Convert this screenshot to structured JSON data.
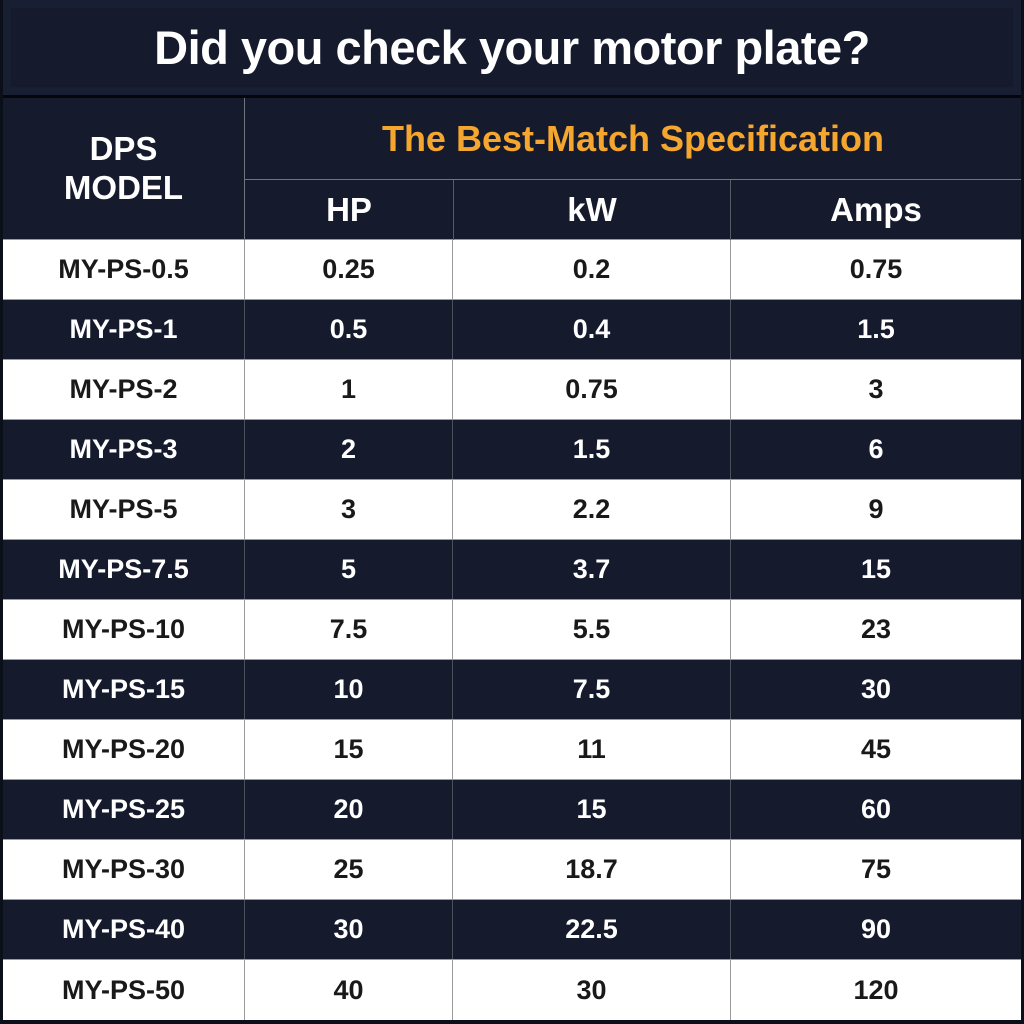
{
  "colors": {
    "navy": "#151B2D",
    "accent_orange": "#F5A62E",
    "grid_line": "#9B9B9B",
    "frame": "#0B0F1A",
    "dark_text": "#191919"
  },
  "title": "Did you check your motor plate?",
  "table": {
    "model_header": "DPS MODEL",
    "spec_header": "The Best-Match Specification",
    "columns": {
      "hp": "HP",
      "kw": "kW",
      "amps": "Amps"
    },
    "rows": [
      {
        "model": "MY-PS-0.5",
        "hp": "0.25",
        "kw": "0.2",
        "amps": "0.75"
      },
      {
        "model": "MY-PS-1",
        "hp": "0.5",
        "kw": "0.4",
        "amps": "1.5"
      },
      {
        "model": "MY-PS-2",
        "hp": "1",
        "kw": "0.75",
        "amps": "3"
      },
      {
        "model": "MY-PS-3",
        "hp": "2",
        "kw": "1.5",
        "amps": "6"
      },
      {
        "model": "MY-PS-5",
        "hp": "3",
        "kw": "2.2",
        "amps": "9"
      },
      {
        "model": "MY-PS-7.5",
        "hp": "5",
        "kw": "3.7",
        "amps": "15"
      },
      {
        "model": "MY-PS-10",
        "hp": "7.5",
        "kw": "5.5",
        "amps": "23"
      },
      {
        "model": "MY-PS-15",
        "hp": "10",
        "kw": "7.5",
        "amps": "30"
      },
      {
        "model": "MY-PS-20",
        "hp": "15",
        "kw": "11",
        "amps": "45"
      },
      {
        "model": "MY-PS-25",
        "hp": "20",
        "kw": "15",
        "amps": "60"
      },
      {
        "model": "MY-PS-30",
        "hp": "25",
        "kw": "18.7",
        "amps": "75"
      },
      {
        "model": "MY-PS-40",
        "hp": "30",
        "kw": "22.5",
        "amps": "90"
      },
      {
        "model": "MY-PS-50",
        "hp": "40",
        "kw": "30",
        "amps": "120"
      }
    ]
  },
  "chart_data": {
    "type": "table",
    "title": "Did you check your motor plate?",
    "group_header": "The Best-Match Specification",
    "columns": [
      "DPS MODEL",
      "HP",
      "kW",
      "Amps"
    ],
    "rows": [
      [
        "MY-PS-0.5",
        0.25,
        0.2,
        0.75
      ],
      [
        "MY-PS-1",
        0.5,
        0.4,
        1.5
      ],
      [
        "MY-PS-2",
        1,
        0.75,
        3
      ],
      [
        "MY-PS-3",
        2,
        1.5,
        6
      ],
      [
        "MY-PS-5",
        3,
        2.2,
        9
      ],
      [
        "MY-PS-7.5",
        5,
        3.7,
        15
      ],
      [
        "MY-PS-10",
        7.5,
        5.5,
        23
      ],
      [
        "MY-PS-15",
        10,
        7.5,
        30
      ],
      [
        "MY-PS-20",
        15,
        11,
        45
      ],
      [
        "MY-PS-25",
        20,
        15,
        60
      ],
      [
        "MY-PS-30",
        25,
        18.7,
        75
      ],
      [
        "MY-PS-40",
        30,
        22.5,
        90
      ],
      [
        "MY-PS-50",
        40,
        30,
        120
      ]
    ],
    "layout": {
      "striped": true,
      "stripe_colors": [
        "#FFFFFF",
        "#151B2D"
      ],
      "header_background": "#151B2D",
      "group_header_color": "#F5A62E"
    }
  }
}
